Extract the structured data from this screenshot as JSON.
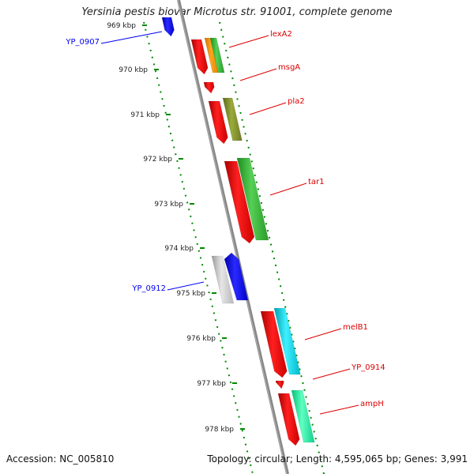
{
  "title": "Yersinia pestis biovar Microtus str. 91001, complete genome",
  "ticks": [
    {
      "label": "969 kbp",
      "kbp": 969
    },
    {
      "label": "970 kbp",
      "kbp": 970
    },
    {
      "label": "971 kbp",
      "kbp": 971
    },
    {
      "label": "972 kbp",
      "kbp": 972
    },
    {
      "label": "973 kbp",
      "kbp": 973
    },
    {
      "label": "974 kbp",
      "kbp": 974
    },
    {
      "label": "975 kbp",
      "kbp": 975
    },
    {
      "label": "976 kbp",
      "kbp": 976
    },
    {
      "label": "977 kbp",
      "kbp": 977
    },
    {
      "label": "978 kbp",
      "kbp": 978
    }
  ],
  "genes": [
    {
      "label": "YP_0907",
      "side": "left",
      "color": "#0000ee"
    },
    {
      "label": "lexA2",
      "side": "right",
      "color": "#dd0000"
    },
    {
      "label": "msgA",
      "side": "right",
      "color": "#dd0000"
    },
    {
      "label": "pla2",
      "side": "right",
      "color": "#dd0000"
    },
    {
      "label": "tar1",
      "side": "right",
      "color": "#dd0000"
    },
    {
      "label": "YP_0912",
      "side": "left",
      "color": "#0000ee"
    },
    {
      "label": "melB1",
      "side": "right",
      "color": "#dd0000"
    },
    {
      "label": "YP_0914",
      "side": "right",
      "color": "#dd0000"
    },
    {
      "label": "ampH",
      "side": "right",
      "color": "#dd0000"
    }
  ],
  "colors": {
    "backbone": "#808080",
    "tick_ring": "#008800",
    "cds_forward": "#ff0000",
    "cds_reverse": "#0000ff",
    "label_forward": "#dd0000",
    "label_reverse": "#0000ee"
  },
  "footer": {
    "accession": "Accession: NC_005810",
    "topology": "Topology: circular; Length: 4,595,065 bp; Genes: 3,991"
  }
}
